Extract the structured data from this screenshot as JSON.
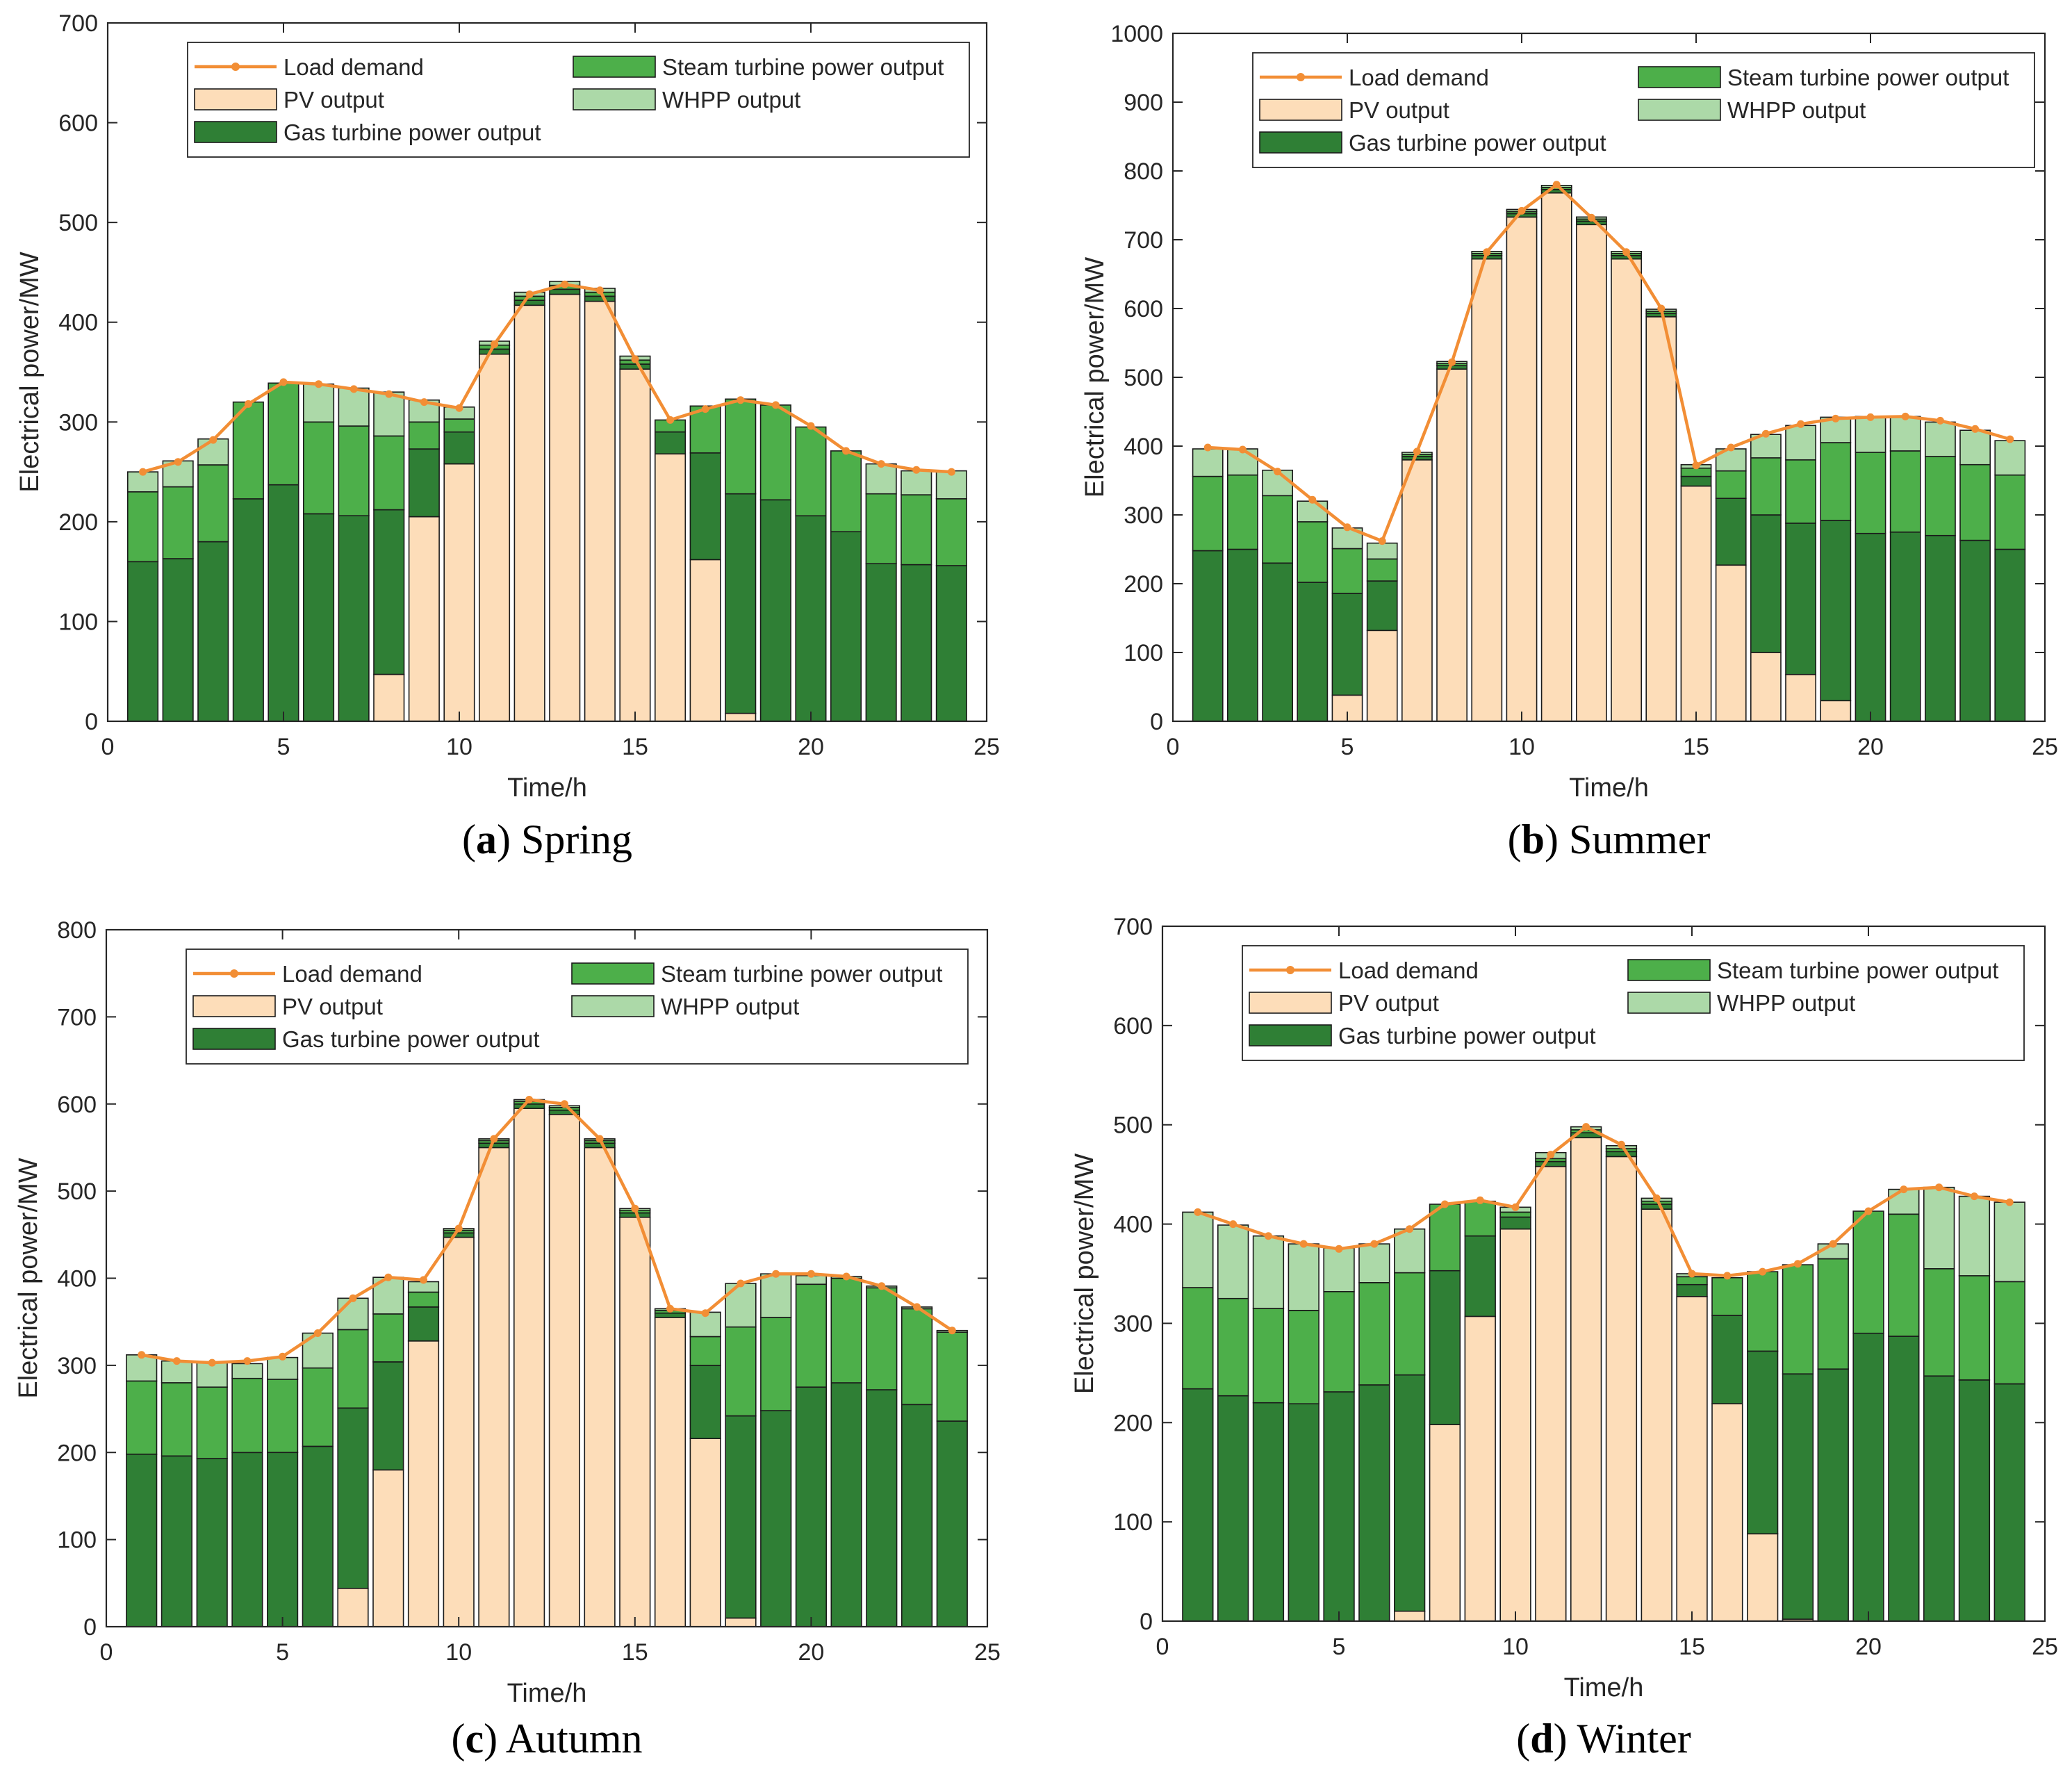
{
  "figure": {
    "panels": [
      {
        "caption": {
          "letter": "a",
          "text": "Spring"
        },
        "chart_data": {
          "type": "bar",
          "stacked": true,
          "title": "",
          "xlabel": "Time/h",
          "ylabel": "Electrical power/MW",
          "xlim": [
            0,
            25
          ],
          "ylim": [
            0,
            700
          ],
          "xticks": [
            0,
            5,
            10,
            15,
            20,
            25
          ],
          "yticks": [
            0,
            100,
            200,
            300,
            400,
            500,
            600,
            700
          ],
          "legend_position": "top",
          "x": [
            1,
            2,
            3,
            4,
            5,
            6,
            7,
            8,
            9,
            10,
            11,
            12,
            13,
            14,
            15,
            16,
            17,
            18,
            19,
            20,
            21,
            22,
            23,
            24
          ],
          "series": [
            {
              "name": "PV output",
              "color": "#FDDDB9",
              "values": [
                0,
                0,
                0,
                0,
                0,
                0,
                0,
                47,
                205,
                258,
                368,
                417,
                428,
                421,
                353,
                268,
                162,
                8,
                0,
                0,
                0,
                0,
                0,
                0
              ]
            },
            {
              "name": "Gas turbine power output",
              "color": "#2F7F35",
              "values": [
                160,
                163,
                180,
                223,
                237,
                208,
                206,
                165,
                68,
                32,
                5,
                5,
                5,
                5,
                5,
                22,
                107,
                220,
                222,
                206,
                190,
                158,
                157,
                156
              ]
            },
            {
              "name": "Steam turbine power output",
              "color": "#4DAF4A",
              "values": [
                70,
                72,
                77,
                97,
                102,
                92,
                90,
                74,
                27,
                13,
                4,
                4,
                4,
                4,
                4,
                12,
                47,
                95,
                95,
                89,
                81,
                70,
                70,
                67
              ]
            },
            {
              "name": "WHPP output",
              "color": "#ACD9A8",
              "values": [
                20,
                26,
                26,
                0,
                0,
                38,
                38,
                44,
                22,
                12,
                4,
                4,
                4,
                4,
                4,
                0,
                0,
                0,
                0,
                0,
                0,
                30,
                24,
                28
              ]
            }
          ],
          "line": {
            "name": "Load demand",
            "color": "#F28E35",
            "values": [
              250,
              260,
              282,
              318,
              340,
              338,
              333,
              328,
              320,
              314,
              378,
              428,
              438,
              432,
              363,
              302,
              313,
              322,
              317,
              296,
              271,
              258,
              252,
              250
            ]
          }
        }
      },
      {
        "caption": {
          "letter": "b",
          "text": "Summer"
        },
        "chart_data": {
          "type": "bar",
          "stacked": true,
          "title": "",
          "xlabel": "Time/h",
          "ylabel": "Electrical power/MW",
          "xlim": [
            0,
            25
          ],
          "ylim": [
            0,
            1000
          ],
          "xticks": [
            0,
            5,
            10,
            15,
            20,
            25
          ],
          "yticks": [
            0,
            100,
            200,
            300,
            400,
            500,
            600,
            700,
            800,
            900,
            1000
          ],
          "legend_position": "top",
          "x": [
            1,
            2,
            3,
            4,
            5,
            6,
            7,
            8,
            9,
            10,
            11,
            12,
            13,
            14,
            15,
            16,
            17,
            18,
            19,
            20,
            21,
            22,
            23,
            24
          ],
          "series": [
            {
              "name": "PV output",
              "color": "#FDDDB9",
              "values": [
                0,
                0,
                0,
                0,
                38,
                132,
                380,
                512,
                672,
                733,
                768,
                722,
                672,
                588,
                342,
                227,
                100,
                68,
                30,
                0,
                0,
                0,
                0,
                0
              ]
            },
            {
              "name": "Gas turbine power output",
              "color": "#2F7F35",
              "values": [
                248,
                250,
                230,
                202,
                148,
                72,
                5,
                5,
                5,
                5,
                5,
                5,
                5,
                5,
                14,
                97,
                200,
                220,
                262,
                273,
                275,
                270,
                263,
                250
              ]
            },
            {
              "name": "Steam turbine power output",
              "color": "#4DAF4A",
              "values": [
                108,
                108,
                98,
                88,
                65,
                32,
                3,
                3,
                3,
                3,
                3,
                3,
                3,
                3,
                12,
                40,
                83,
                92,
                113,
                118,
                118,
                115,
                110,
                108
              ]
            },
            {
              "name": "WHPP output",
              "color": "#ACD9A8",
              "values": [
                40,
                38,
                37,
                30,
                30,
                23,
                3,
                3,
                3,
                3,
                3,
                3,
                3,
                3,
                5,
                32,
                34,
                50,
                37,
                52,
                50,
                50,
                50,
                50
              ]
            }
          ],
          "line": {
            "name": "Load demand",
            "color": "#F28E35",
            "values": [
              398,
              395,
              363,
              322,
              282,
              262,
              392,
              522,
              682,
              742,
              780,
              732,
              682,
              600,
              372,
              398,
              418,
              432,
              440,
              442,
              443,
              437,
              425,
              410
            ]
          }
        }
      },
      {
        "caption": {
          "letter": "c",
          "text": "Autumn"
        },
        "chart_data": {
          "type": "bar",
          "stacked": true,
          "title": "",
          "xlabel": "Time/h",
          "ylabel": "Electrical power/MW",
          "xlim": [
            0,
            25
          ],
          "ylim": [
            0,
            800
          ],
          "xticks": [
            0,
            5,
            10,
            15,
            20,
            25
          ],
          "yticks": [
            0,
            100,
            200,
            300,
            400,
            500,
            600,
            700,
            800
          ],
          "legend_position": "top",
          "x": [
            1,
            2,
            3,
            4,
            5,
            6,
            7,
            8,
            9,
            10,
            11,
            12,
            13,
            14,
            15,
            16,
            17,
            18,
            19,
            20,
            21,
            22,
            23,
            24
          ],
          "series": [
            {
              "name": "PV output",
              "color": "#FDDDB9",
              "values": [
                0,
                0,
                0,
                0,
                0,
                0,
                44,
                180,
                328,
                447,
                550,
                595,
                588,
                550,
                470,
                355,
                216,
                10,
                0,
                0,
                0,
                0,
                0,
                0
              ]
            },
            {
              "name": "Gas turbine power output",
              "color": "#2F7F35",
              "values": [
                198,
                196,
                193,
                200,
                200,
                207,
                207,
                124,
                39,
                5,
                5,
                5,
                5,
                5,
                5,
                5,
                84,
                232,
                248,
                275,
                280,
                272,
                255,
                236
              ]
            },
            {
              "name": "Steam turbine power output",
              "color": "#4DAF4A",
              "values": [
                84,
                84,
                82,
                85,
                84,
                90,
                90,
                55,
                17,
                3,
                3,
                3,
                3,
                3,
                3,
                3,
                33,
                102,
                107,
                118,
                120,
                117,
                110,
                102
              ]
            },
            {
              "name": "WHPP output",
              "color": "#ACD9A8",
              "values": [
                30,
                25,
                28,
                17,
                25,
                40,
                36,
                42,
                12,
                2,
                2,
                2,
                2,
                2,
                2,
                2,
                28,
                50,
                50,
                10,
                2,
                2,
                2,
                2
              ]
            }
          ],
          "line": {
            "name": "Load demand",
            "color": "#F28E35",
            "values": [
              312,
              305,
              303,
              305,
              310,
              337,
              377,
              401,
              398,
              457,
              560,
              605,
              600,
              560,
              480,
              365,
              360,
              394,
              405,
              405,
              402,
              391,
              367,
              340
            ]
          }
        }
      },
      {
        "caption": {
          "letter": "d",
          "text": "Winter"
        },
        "chart_data": {
          "type": "bar",
          "stacked": true,
          "title": "",
          "xlabel": "Time/h",
          "ylabel": "Electrical power/MW",
          "xlim": [
            0,
            25
          ],
          "ylim": [
            0,
            700
          ],
          "xticks": [
            0,
            5,
            10,
            15,
            20,
            25
          ],
          "yticks": [
            0,
            100,
            200,
            300,
            400,
            500,
            600,
            700
          ],
          "legend_position": "top",
          "x": [
            1,
            2,
            3,
            4,
            5,
            6,
            7,
            8,
            9,
            10,
            11,
            12,
            13,
            14,
            15,
            16,
            17,
            18,
            19,
            20,
            21,
            22,
            23,
            24
          ],
          "series": [
            {
              "name": "PV output",
              "color": "#FDDDB9",
              "values": [
                0,
                0,
                0,
                0,
                0,
                0,
                10,
                198,
                307,
                395,
                458,
                487,
                468,
                415,
                327,
                219,
                88,
                2,
                0,
                0,
                0,
                0,
                0,
                0
              ]
            },
            {
              "name": "Gas turbine power output",
              "color": "#2F7F35",
              "values": [
                234,
                227,
                220,
                219,
                231,
                238,
                238,
                155,
                81,
                12,
                5,
                5,
                5,
                5,
                12,
                89,
                184,
                247,
                254,
                290,
                287,
                247,
                243,
                239
              ]
            },
            {
              "name": "Steam turbine power output",
              "color": "#4DAF4A",
              "values": [
                102,
                98,
                95,
                94,
                101,
                103,
                103,
                67,
                35,
                5,
                3,
                3,
                3,
                3,
                8,
                38,
                80,
                110,
                111,
                123,
                123,
                108,
                105,
                103
              ]
            },
            {
              "name": "WHPP output",
              "color": "#ACD9A8",
              "values": [
                76,
                74,
                73,
                67,
                44,
                39,
                44,
                0,
                0,
                5,
                6,
                3,
                3,
                3,
                3,
                0,
                0,
                0,
                15,
                0,
                25,
                82,
                80,
                80
              ]
            }
          ],
          "line": {
            "name": "Load demand",
            "color": "#F28E35",
            "values": [
              412,
              400,
              388,
              380,
              375,
              380,
              395,
              420,
              424,
              417,
              470,
              498,
              480,
              426,
              350,
              348,
              352,
              360,
              380,
              413,
              435,
              437,
              428,
              422
            ]
          }
        }
      }
    ]
  }
}
